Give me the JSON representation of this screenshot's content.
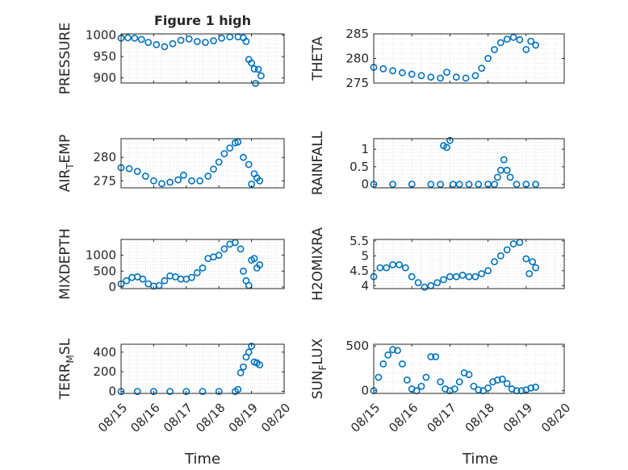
{
  "figure": {
    "title": "Figure 1 high",
    "colors": {
      "marker": "#0072BD",
      "axis": "#262626",
      "grid": "#d9d9d9",
      "background": "#ffffff"
    }
  },
  "chart_data": [
    {
      "type": "scatter",
      "name": "pressure-panel",
      "ylabel": "PRESSURE",
      "xlim": [
        "08/15",
        "08/20"
      ],
      "ylim": [
        888,
        1003
      ],
      "yticks": [
        900,
        950,
        1000
      ],
      "xticks": [
        "08/15",
        "08/16",
        "08/17",
        "08/18",
        "08/19",
        "08/20"
      ],
      "x": [
        "08/15 00:00",
        "08/15 05:00",
        "08/15 10:00",
        "08/15 15:00",
        "08/15 20:00",
        "08/16 02:00",
        "08/16 08:00",
        "08/16 14:00",
        "08/16 20:00",
        "08/17 02:00",
        "08/17 08:00",
        "08/17 14:00",
        "08/17 20:00",
        "08/18 02:00",
        "08/18 08:00",
        "08/18 14:00",
        "08/18 18:00",
        "08/18 20:00",
        "08/18 22:00",
        "08/19 00:00",
        "08/19 02:00",
        "08/19 03:00",
        "08/19 05:00",
        "08/19 07:00"
      ],
      "y": [
        993,
        994,
        993,
        990,
        983,
        978,
        973,
        980,
        988,
        991,
        985,
        983,
        987,
        993,
        996,
        996,
        994,
        985,
        943,
        935,
        921,
        887,
        920,
        905
      ]
    },
    {
      "type": "scatter",
      "name": "theta-panel",
      "ylabel": "THETA",
      "xlim": [
        "08/15",
        "08/20"
      ],
      "ylim": [
        275,
        285
      ],
      "yticks": [
        275,
        280,
        285
      ],
      "xticks": [
        "08/15",
        "08/16",
        "08/17",
        "08/18",
        "08/19",
        "08/20"
      ],
      "x": [
        "08/15 00:00",
        "08/15 06:00",
        "08/15 12:00",
        "08/15 18:00",
        "08/16 00:00",
        "08/16 06:00",
        "08/16 12:00",
        "08/16 18:00",
        "08/16 22:00",
        "08/17 04:00",
        "08/17 10:00",
        "08/17 16:00",
        "08/17 20:00",
        "08/18 00:00",
        "08/18 04:00",
        "08/18 08:00",
        "08/18 12:00",
        "08/18 16:00",
        "08/18 20:00",
        "08/19 00:00",
        "08/19 03:00",
        "08/19 06:00"
      ],
      "y": [
        278.2,
        277.9,
        277.5,
        277.1,
        276.8,
        276.5,
        276.2,
        276.0,
        277.2,
        276.2,
        276.0,
        276.5,
        278.0,
        280.0,
        281.8,
        283.2,
        283.9,
        284.3,
        283.8,
        281.8,
        283.5,
        282.7
      ]
    },
    {
      "type": "scatter",
      "name": "air-temp-panel",
      "ylabel": "AIR_TEMP",
      "ylabel_sub": "T",
      "xlim": [
        "08/15",
        "08/20"
      ],
      "ylim": [
        273.5,
        284
      ],
      "yticks": [
        275,
        280
      ],
      "xticks": [
        "08/15",
        "08/16",
        "08/17",
        "08/18",
        "08/19",
        "08/20"
      ],
      "x": [
        "08/15 00:00",
        "08/15 06:00",
        "08/15 12:00",
        "08/15 18:00",
        "08/16 00:00",
        "08/16 06:00",
        "08/16 12:00",
        "08/16 18:00",
        "08/16 22:00",
        "08/17 04:00",
        "08/17 10:00",
        "08/17 16:00",
        "08/17 20:00",
        "08/18 00:00",
        "08/18 04:00",
        "08/18 08:00",
        "08/18 12:00",
        "08/18 14:00",
        "08/18 18:00",
        "08/18 22:00",
        "08/19 00:00",
        "08/19 02:00",
        "08/19 04:00",
        "08/19 06:00"
      ],
      "y": [
        277.8,
        277.6,
        277.0,
        276.0,
        275.0,
        274.4,
        274.7,
        275.2,
        276.2,
        275.0,
        275.0,
        276.0,
        277.5,
        279.0,
        280.8,
        282.0,
        283.1,
        283.3,
        280.0,
        278.5,
        274.3,
        276.5,
        275.6,
        275.0
      ]
    },
    {
      "type": "scatter",
      "name": "rainfall-panel",
      "ylabel": "RAINFALL",
      "xlim": [
        "08/15",
        "08/20"
      ],
      "ylim": [
        -0.1,
        1.3
      ],
      "yticks": [
        0,
        0.5,
        1
      ],
      "xticks": [
        "08/15",
        "08/16",
        "08/17",
        "08/18",
        "08/19",
        "08/20"
      ],
      "x": [
        "08/15 00:00",
        "08/15 12:00",
        "08/16 00:00",
        "08/16 12:00",
        "08/16 18:00",
        "08/16 20:00",
        "08/16 22:00",
        "08/17 00:00",
        "08/17 02:00",
        "08/17 06:00",
        "08/17 12:00",
        "08/17 18:00",
        "08/18 00:00",
        "08/18 04:00",
        "08/18 06:00",
        "08/18 08:00",
        "08/18 10:00",
        "08/18 12:00",
        "08/18 14:00",
        "08/18 18:00",
        "08/19 00:00",
        "08/19 06:00"
      ],
      "y": [
        0,
        0,
        0,
        0,
        0,
        1.1,
        1.05,
        1.25,
        0,
        0,
        0,
        0,
        0,
        0,
        0.2,
        0.4,
        0.7,
        0.4,
        0.2,
        0,
        0,
        0
      ]
    },
    {
      "type": "scatter",
      "name": "mixdepth-panel",
      "ylabel": "MIXDEPTH",
      "xlim": [
        "08/15",
        "08/20"
      ],
      "ylim": [
        -50,
        1500
      ],
      "yticks": [
        0,
        500,
        1000
      ],
      "xticks": [
        "08/15",
        "08/16",
        "08/17",
        "08/18",
        "08/19",
        "08/20"
      ],
      "x": [
        "08/15 00:00",
        "08/15 04:00",
        "08/15 08:00",
        "08/15 12:00",
        "08/15 16:00",
        "08/15 20:00",
        "08/16 00:00",
        "08/16 04:00",
        "08/16 08:00",
        "08/16 12:00",
        "08/16 16:00",
        "08/16 20:00",
        "08/17 00:00",
        "08/17 04:00",
        "08/17 08:00",
        "08/17 12:00",
        "08/17 16:00",
        "08/17 20:00",
        "08/18 00:00",
        "08/18 04:00",
        "08/18 08:00",
        "08/18 12:00",
        "08/18 16:00",
        "08/18 18:00",
        "08/18 20:00",
        "08/18 22:00",
        "08/19 00:00",
        "08/19 02:00",
        "08/19 04:00",
        "08/19 06:00"
      ],
      "y": [
        100,
        200,
        300,
        320,
        250,
        100,
        30,
        50,
        200,
        350,
        320,
        250,
        250,
        300,
        450,
        600,
        900,
        950,
        1000,
        1200,
        1350,
        1400,
        1200,
        500,
        200,
        50,
        850,
        900,
        600,
        700
      ]
    },
    {
      "type": "scatter",
      "name": "h2omixra-panel",
      "ylabel": "H2OMIXRA",
      "xlim": [
        "08/15",
        "08/20"
      ],
      "ylim": [
        3.9,
        5.55
      ],
      "yticks": [
        4,
        4.5,
        5,
        5.5
      ],
      "xticks": [
        "08/15",
        "08/16",
        "08/17",
        "08/18",
        "08/19",
        "08/20"
      ],
      "x": [
        "08/15 00:00",
        "08/15 04:00",
        "08/15 08:00",
        "08/15 12:00",
        "08/15 16:00",
        "08/15 20:00",
        "08/16 00:00",
        "08/16 04:00",
        "08/16 08:00",
        "08/16 12:00",
        "08/16 16:00",
        "08/16 20:00",
        "08/17 00:00",
        "08/17 04:00",
        "08/17 08:00",
        "08/17 12:00",
        "08/17 16:00",
        "08/17 20:00",
        "08/18 00:00",
        "08/18 04:00",
        "08/18 08:00",
        "08/18 12:00",
        "08/18 16:00",
        "08/18 20:00",
        "08/19 00:00",
        "08/19 02:00",
        "08/19 04:00",
        "08/19 06:00"
      ],
      "y": [
        4.3,
        4.6,
        4.6,
        4.7,
        4.7,
        4.6,
        4.3,
        4.1,
        3.95,
        4.0,
        4.1,
        4.2,
        4.3,
        4.3,
        4.35,
        4.3,
        4.3,
        4.4,
        4.5,
        4.8,
        5.0,
        5.2,
        5.4,
        5.45,
        4.9,
        4.4,
        4.8,
        4.6
      ]
    },
    {
      "type": "scatter",
      "name": "terr-msl-panel",
      "ylabel": "TERR_MSL",
      "ylabel_sub": "M",
      "xlim": [
        "08/15",
        "08/20"
      ],
      "ylim": [
        -20,
        480
      ],
      "yticks": [
        0,
        200,
        400
      ],
      "xticks": [
        "08/15",
        "08/16",
        "08/17",
        "08/18",
        "08/19",
        "08/20"
      ],
      "x": [
        "08/15 00:00",
        "08/15 12:00",
        "08/16 00:00",
        "08/16 12:00",
        "08/17 00:00",
        "08/17 12:00",
        "08/18 00:00",
        "08/18 12:00",
        "08/18 14:00",
        "08/18 16:00",
        "08/18 18:00",
        "08/18 20:00",
        "08/18 22:00",
        "08/19 00:00",
        "08/19 02:00",
        "08/19 04:00",
        "08/19 06:00"
      ],
      "y": [
        0,
        0,
        0,
        0,
        0,
        0,
        0,
        0,
        20,
        190,
        250,
        350,
        400,
        460,
        300,
        290,
        270
      ]
    },
    {
      "type": "scatter",
      "name": "sun-flux-panel",
      "ylabel": "SUN_FLUX",
      "ylabel_sub": "F",
      "xlim": [
        "08/15",
        "08/20"
      ],
      "ylim": [
        -30,
        520
      ],
      "yticks": [
        0,
        500
      ],
      "xticks": [
        "08/15",
        "08/16",
        "08/17",
        "08/18",
        "08/19",
        "08/20"
      ],
      "x": [
        "08/15 00:00",
        "08/15 03:00",
        "08/15 06:00",
        "08/15 09:00",
        "08/15 12:00",
        "08/15 15:00",
        "08/15 18:00",
        "08/15 21:00",
        "08/16 00:00",
        "08/16 03:00",
        "08/16 06:00",
        "08/16 09:00",
        "08/16 12:00",
        "08/16 15:00",
        "08/16 18:00",
        "08/16 21:00",
        "08/17 00:00",
        "08/17 03:00",
        "08/17 06:00",
        "08/17 09:00",
        "08/17 12:00",
        "08/17 15:00",
        "08/17 18:00",
        "08/17 21:00",
        "08/18 00:00",
        "08/18 03:00",
        "08/18 06:00",
        "08/18 09:00",
        "08/18 12:00",
        "08/18 15:00",
        "08/18 18:00",
        "08/18 21:00",
        "08/19 00:00",
        "08/19 03:00",
        "08/19 06:00"
      ],
      "y": [
        0,
        150,
        300,
        400,
        460,
        450,
        300,
        120,
        20,
        0,
        50,
        150,
        380,
        380,
        100,
        20,
        0,
        20,
        100,
        200,
        180,
        50,
        10,
        0,
        30,
        100,
        120,
        130,
        80,
        20,
        0,
        0,
        10,
        30,
        40
      ]
    }
  ],
  "xlabel": "Time"
}
